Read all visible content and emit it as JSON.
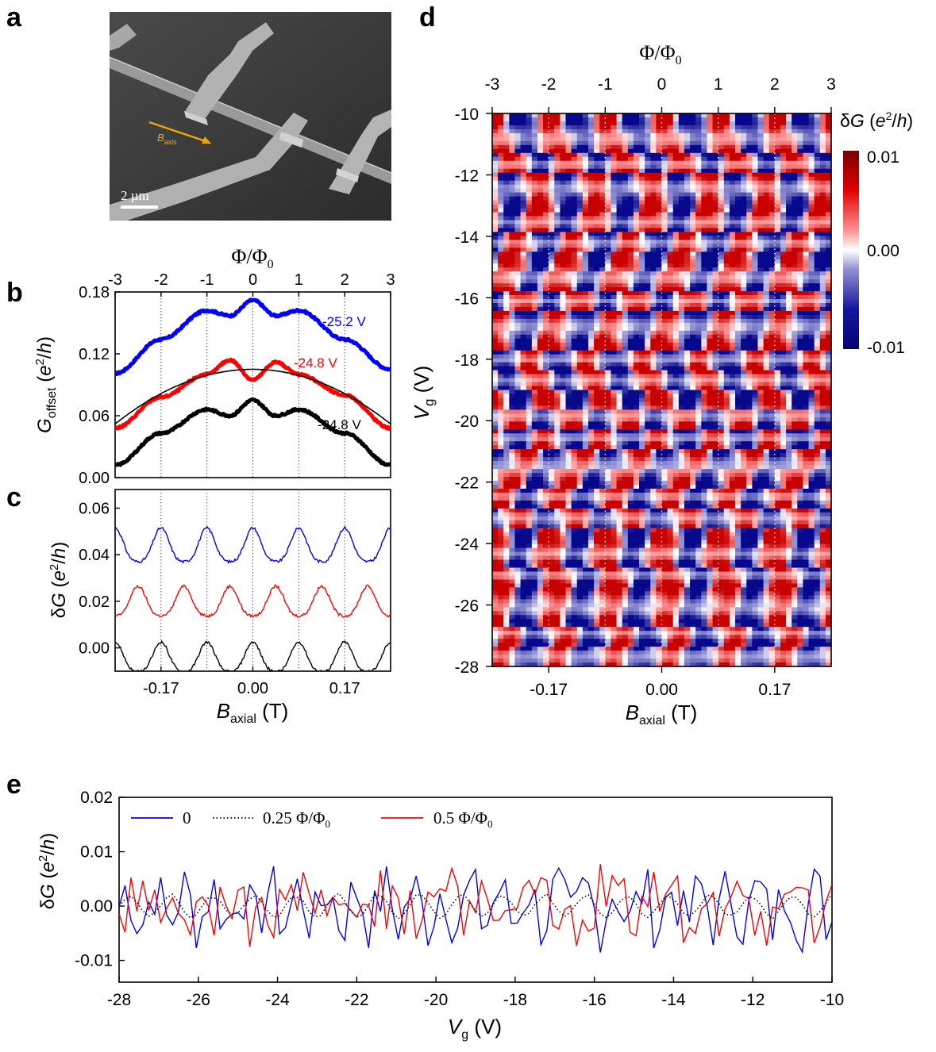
{
  "panel_labels": {
    "a": "a",
    "b": "b",
    "c": "c",
    "d": "d",
    "e": "e"
  },
  "sem": {
    "field_label_main": "B",
    "field_label_sub": "axis",
    "scale_bar_label": "2 µm"
  },
  "colors": {
    "blue": "#0000ff",
    "red": "#ff0000",
    "black": "#000000",
    "map_neg": "#0a0a8c",
    "map_pos": "#8b0000",
    "arrow": "#f0a800"
  },
  "chart_data": [
    {
      "id": "b",
      "type": "line",
      "top_axis_label": "Φ/Φ0",
      "top_ticks": [
        "-3",
        "-2",
        "-1",
        "0",
        "1",
        "2",
        "3"
      ],
      "ylabel_main": "G",
      "ylabel_sub": "offset",
      "ylabel_unit": "(e²/h)",
      "yticks": [
        "0.00",
        "0.06",
        "0.12",
        "0.18"
      ],
      "ylim": [
        0,
        0.18
      ],
      "xlim": [
        -3,
        3
      ],
      "grid": "dotted verticals at Φ/Φ0 = -2,-1,0,1,2",
      "series": [
        {
          "name": "-25.2 V",
          "color": "blue",
          "base": 0.101,
          "values_at_flux": {
            "-3": 0.101,
            "-2": 0.134,
            "-1": 0.162,
            "-0.5": 0.157,
            "0": 0.172,
            "0.5": 0.157,
            "1": 0.162,
            "2": 0.134,
            "3": 0.105
          }
        },
        {
          "name": "-24.8 V",
          "color": "red",
          "values_at_flux": {
            "-3": 0.048,
            "-2": 0.078,
            "-1": 0.1,
            "-0.5": 0.114,
            "0": 0.095,
            "0.5": 0.112,
            "1": 0.1,
            "2": 0.08,
            "3": 0.048
          }
        },
        {
          "name": "-24.8 V",
          "color": "black",
          "values_at_flux": {
            "-3": 0.012,
            "-2": 0.043,
            "-1": 0.066,
            "-0.5": 0.06,
            "0": 0.075,
            "0.5": 0.06,
            "1": 0.066,
            "2": 0.043,
            "3": 0.012
          }
        }
      ],
      "background_fit": {
        "color": "black",
        "peak": 0.105,
        "at_edges": 0.052
      }
    },
    {
      "id": "c",
      "type": "line",
      "ylabel": "δG (e²/h)",
      "yticks": [
        "0.00",
        "0.02",
        "0.04",
        "0.06"
      ],
      "ylim": [
        -0.01,
        0.068
      ],
      "xlabel_main": "B",
      "xlabel_sub": "axial",
      "xlabel_unit": "(T)",
      "xticks": [
        "-0.17",
        "0.00",
        "0.17"
      ],
      "xtick_values": [
        -0.17,
        0.0,
        0.17
      ],
      "xlim": [
        -0.255,
        0.255
      ],
      "flux_period_T": 0.085,
      "series": [
        {
          "color": "blue",
          "offset": 0.043,
          "amplitude": 0.017,
          "peaks_at_integer_flux": true
        },
        {
          "color": "red",
          "offset": 0.019,
          "amplitude": 0.015,
          "peaks_at_half_flux": true
        },
        {
          "color": "black",
          "offset": -0.005,
          "amplitude": 0.015,
          "peaks_at_integer_flux": true
        }
      ]
    },
    {
      "id": "d",
      "type": "heatmap",
      "top_axis_label": "Φ/Φ0",
      "top_ticks": [
        "-3",
        "-2",
        "-1",
        "0",
        "1",
        "2",
        "3"
      ],
      "ylabel_main": "V",
      "ylabel_sub": "g",
      "ylabel_unit": "(V)",
      "yticks": [
        "-10",
        "-12",
        "-14",
        "-16",
        "-18",
        "-20",
        "-22",
        "-24",
        "-26",
        "-28"
      ],
      "ylim": [
        -28,
        -10
      ],
      "xlabel_main": "B",
      "xlabel_sub": "axial",
      "xlabel_unit": "(T)",
      "xticks": [
        "-0.17",
        "0.00",
        "0.17"
      ],
      "xlim": [
        -0.255,
        0.255
      ],
      "colorbar_title": "δG (e²/h)",
      "colorbar_ticks": [
        "0.01",
        "0.00",
        "-0.01"
      ],
      "colorbar_range": [
        -0.01,
        0.01
      ],
      "grid": "white dotted verticals at integer Φ/Φ0"
    },
    {
      "id": "e",
      "type": "line",
      "ylabel": "δG (e²/h)",
      "yticks": [
        "0.02",
        "0.01",
        "0.00",
        "-0.01"
      ],
      "ylim": [
        -0.014,
        0.02
      ],
      "xlabel_main": "V",
      "xlabel_sub": "g",
      "xlabel_unit": "(V)",
      "xticks": [
        "-28",
        "-26",
        "-24",
        "-22",
        "-20",
        "-18",
        "-16",
        "-14",
        "-12",
        "-10"
      ],
      "xlim": [
        -28,
        -10
      ],
      "legend_position": "top-left",
      "series": [
        {
          "name": "0",
          "color": "blue",
          "style": "solid",
          "amplitude": 0.008
        },
        {
          "name": "0.25 Φ/Φ0",
          "color": "black",
          "style": "dotted",
          "amplitude": 0.0025
        },
        {
          "name": "0.5 Φ/Φ0",
          "color": "red",
          "style": "solid",
          "amplitude": 0.008
        }
      ]
    }
  ]
}
